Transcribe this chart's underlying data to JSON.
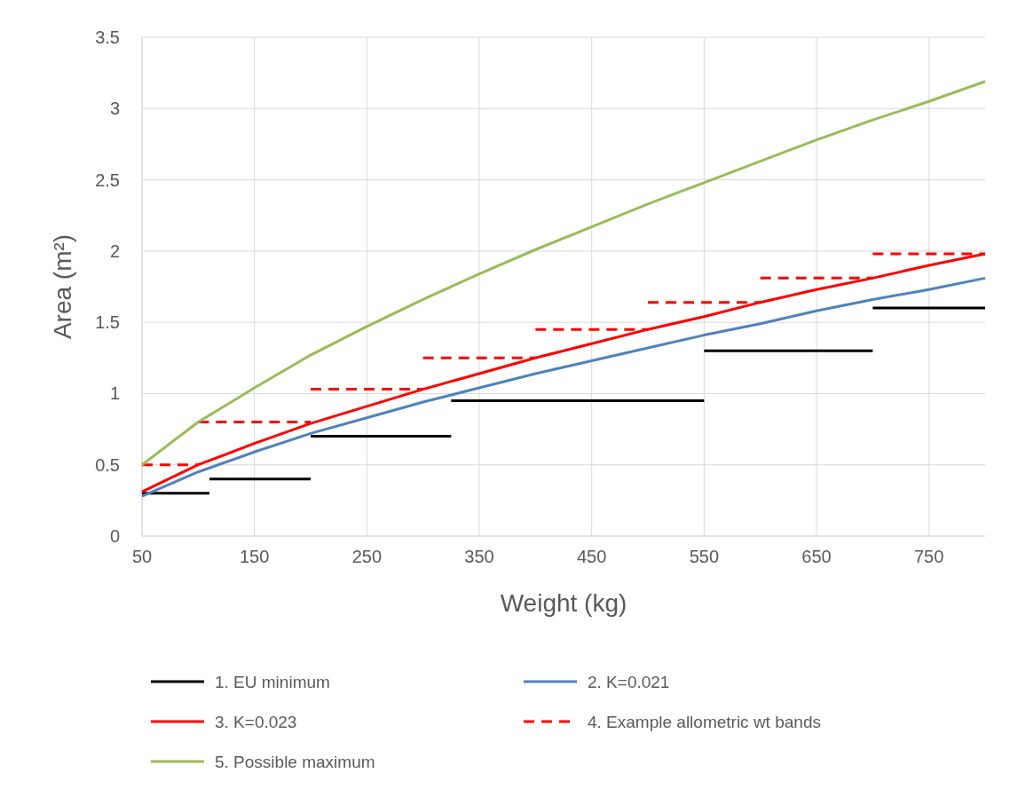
{
  "chart_data": {
    "type": "line",
    "xlabel": "Weight (kg)",
    "ylabel": "Area (m²)",
    "xlim": [
      50,
      800
    ],
    "xticks": [
      50,
      150,
      250,
      350,
      450,
      550,
      650,
      750
    ],
    "ylim": [
      0,
      3.5
    ],
    "yticks": [
      0,
      0.5,
      1,
      1.5,
      2,
      2.5,
      3,
      3.5
    ],
    "grid": true,
    "legend": "bottom",
    "marker": "none",
    "series": [
      {
        "name": "1. EU minimum",
        "color": "#000000",
        "line_style": "solid",
        "x": [
          50,
          110,
          null,
          110,
          200,
          null,
          200,
          325,
          null,
          325,
          550,
          null,
          550,
          700,
          null,
          700,
          800
        ],
        "values": [
          0.3,
          0.3,
          null,
          0.4,
          0.4,
          null,
          0.7,
          0.7,
          null,
          0.95,
          0.95,
          null,
          1.3,
          1.3,
          null,
          1.6,
          1.6
        ]
      },
      {
        "name": "2. K=0.021",
        "color": "#4f81bd",
        "line_style": "solid",
        "x": [
          50,
          100,
          150,
          200,
          250,
          300,
          350,
          400,
          450,
          500,
          550,
          600,
          650,
          700,
          750,
          800
        ],
        "values": [
          0.28,
          0.45,
          0.59,
          0.72,
          0.83,
          0.94,
          1.04,
          1.14,
          1.23,
          1.32,
          1.41,
          1.49,
          1.58,
          1.66,
          1.73,
          1.81
        ]
      },
      {
        "name": "3. K=0.023",
        "color": "#ff0000",
        "line_style": "solid",
        "x": [
          50,
          100,
          150,
          200,
          250,
          300,
          350,
          400,
          450,
          500,
          550,
          600,
          650,
          700,
          750,
          800
        ],
        "values": [
          0.31,
          0.5,
          0.65,
          0.79,
          0.91,
          1.03,
          1.14,
          1.25,
          1.35,
          1.45,
          1.54,
          1.64,
          1.73,
          1.81,
          1.9,
          1.98
        ]
      },
      {
        "name": "4. Example allometric wt bands",
        "color": "#ff0000",
        "line_style": "dashed",
        "x": [
          50,
          100,
          null,
          100,
          200,
          null,
          200,
          300,
          null,
          300,
          400,
          null,
          400,
          500,
          null,
          500,
          600,
          null,
          600,
          700,
          null,
          700,
          800
        ],
        "values": [
          0.5,
          0.5,
          null,
          0.8,
          0.8,
          null,
          1.03,
          1.03,
          null,
          1.25,
          1.25,
          null,
          1.45,
          1.45,
          null,
          1.64,
          1.64,
          null,
          1.81,
          1.81,
          null,
          1.98,
          1.98
        ]
      },
      {
        "name": "5. Possible maximum",
        "color": "#9bbb59",
        "line_style": "solid",
        "x": [
          50,
          100,
          150,
          200,
          250,
          300,
          350,
          400,
          450,
          500,
          550,
          600,
          650,
          700,
          750,
          800
        ],
        "values": [
          0.5,
          0.8,
          1.04,
          1.27,
          1.47,
          1.66,
          1.84,
          2.01,
          2.17,
          2.33,
          2.48,
          2.63,
          2.78,
          2.92,
          3.05,
          3.19
        ]
      }
    ]
  }
}
